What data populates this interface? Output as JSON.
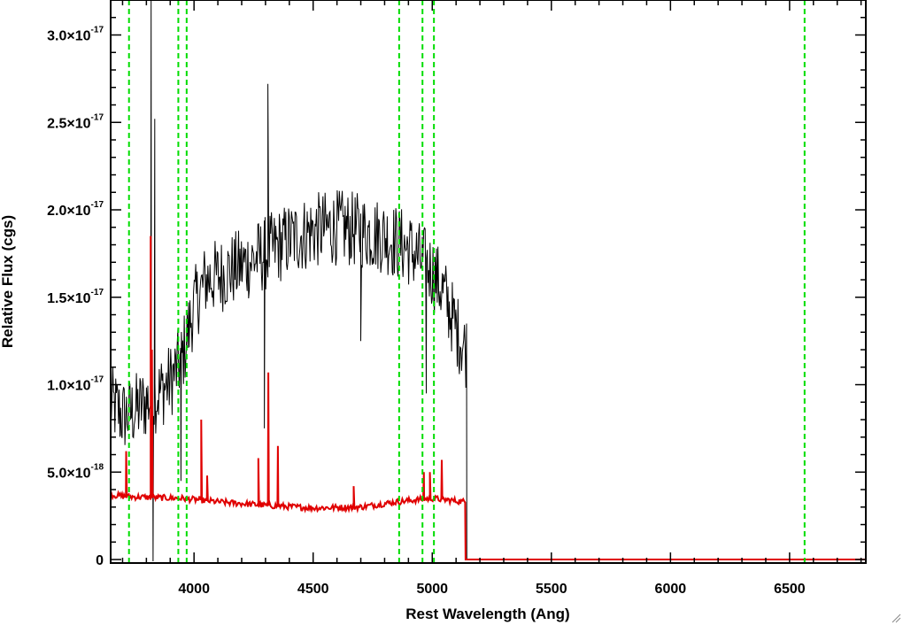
{
  "chart_data": {
    "type": "line",
    "xlabel": "Rest Wavelength (Ang)",
    "ylabel": "Relative Flux (cgs)",
    "xlim": [
      3650,
      6820
    ],
    "ylim": [
      -2e-19,
      3.2e-17
    ],
    "x_ticks": [
      {
        "value": 4000,
        "label": "4000"
      },
      {
        "value": 4500,
        "label": "4500"
      },
      {
        "value": 5000,
        "label": "5000"
      },
      {
        "value": 5500,
        "label": "5500"
      },
      {
        "value": 6000,
        "label": "6000"
      },
      {
        "value": 6500,
        "label": "6500"
      }
    ],
    "y_ticks": [
      {
        "value": 0,
        "mantissa": "0",
        "exponent": ""
      },
      {
        "value": 5e-18,
        "mantissa": "5.0×10",
        "exponent": "-18"
      },
      {
        "value": 1e-17,
        "mantissa": "1.0×10",
        "exponent": "-17"
      },
      {
        "value": 1.5e-17,
        "mantissa": "1.5×10",
        "exponent": "-17"
      },
      {
        "value": 2e-17,
        "mantissa": "2.0×10",
        "exponent": "-17"
      },
      {
        "value": 2.5e-17,
        "mantissa": "2.5×10",
        "exponent": "-17"
      },
      {
        "value": 3e-17,
        "mantissa": "3.0×10",
        "exponent": "-17"
      }
    ],
    "grid": false,
    "series": [
      {
        "role": "spectrum",
        "color": "#000000",
        "noise_amplitude": 2.2e-18,
        "envelope": [
          [
            3650,
            9e-18
          ],
          [
            3700,
            8.2e-18
          ],
          [
            3750,
            8.5e-18
          ],
          [
            3800,
            9e-18
          ],
          [
            3850,
            9.5e-18
          ],
          [
            3900,
            1.02e-17
          ],
          [
            3950,
            1.15e-17
          ],
          [
            4000,
            1.45e-17
          ],
          [
            4050,
            1.6e-17
          ],
          [
            4100,
            1.62e-17
          ],
          [
            4200,
            1.68e-17
          ],
          [
            4300,
            1.75e-17
          ],
          [
            4400,
            1.83e-17
          ],
          [
            4500,
            1.88e-17
          ],
          [
            4600,
            1.9e-17
          ],
          [
            4700,
            1.88e-17
          ],
          [
            4800,
            1.85e-17
          ],
          [
            4900,
            1.78e-17
          ],
          [
            5000,
            1.65e-17
          ],
          [
            5050,
            1.52e-17
          ],
          [
            5100,
            1.32e-17
          ],
          [
            5140,
            1.2e-17
          ]
        ],
        "spikes": [
          [
            3820,
            3.25e-17
          ],
          [
            3828,
            -1e-19
          ],
          [
            3835,
            2.52e-17
          ],
          [
            3945,
            4.5e-18
          ],
          [
            4310,
            2.72e-17
          ],
          [
            4295,
            7.5e-18
          ],
          [
            4700,
            1.25e-17
          ],
          [
            4975,
            9.5e-18
          ]
        ],
        "end_x": 5145
      },
      {
        "role": "error",
        "color": "#e00000",
        "baseline": [
          [
            3650,
            3.7e-18
          ],
          [
            3720,
            3.6e-18
          ],
          [
            3820,
            3.55e-18
          ],
          [
            3950,
            3.5e-18
          ],
          [
            4100,
            3.3e-18
          ],
          [
            4300,
            3.1e-18
          ],
          [
            4500,
            2.95e-18
          ],
          [
            4700,
            3e-18
          ],
          [
            4850,
            3.3e-18
          ],
          [
            5000,
            3.5e-18
          ],
          [
            5135,
            3.3e-18
          ]
        ],
        "spikes": [
          [
            3715,
            6.2e-18
          ],
          [
            3818,
            1.85e-17
          ],
          [
            3823,
            1.2e-17
          ],
          [
            4030,
            8e-18
          ],
          [
            4055,
            4.8e-18
          ],
          [
            4270,
            5.8e-18
          ],
          [
            4312,
            1.07e-17
          ],
          [
            4352,
            6.5e-18
          ],
          [
            4670,
            4.2e-18
          ],
          [
            4965,
            5e-18
          ],
          [
            4990,
            5e-18
          ],
          [
            5040,
            5.7e-18
          ]
        ],
        "drop_x": 5140
      }
    ],
    "reference_lines": [
      {
        "x": 3727,
        "color": "#00dd00"
      },
      {
        "x": 3934,
        "color": "#00dd00"
      },
      {
        "x": 3969,
        "color": "#00dd00"
      },
      {
        "x": 4861,
        "color": "#00dd00"
      },
      {
        "x": 4959,
        "color": "#00dd00"
      },
      {
        "x": 5007,
        "color": "#00dd00"
      },
      {
        "x": 6563,
        "color": "#00dd00"
      }
    ]
  }
}
